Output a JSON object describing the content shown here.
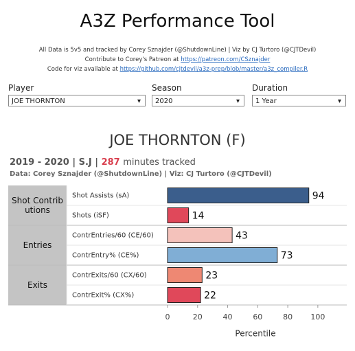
{
  "header": {
    "title": "A3Z Performance Tool",
    "credit": "All Data is 5v5 and tracked by Corey Sznajder (@ShutdownLine) | Viz by CJ Turtoro (@CJTDevil)",
    "patreon_text": "Contribute to Corey's Patreon at",
    "patreon_link": "https://patreon.com/CSznajder",
    "code_text": "Code for viz available at",
    "code_link": "https://github.com/cjtdevil/a3z-prep/blob/master/a3z_compiler.R"
  },
  "filters": [
    {
      "label": "Player",
      "value": "JOE THORNTON"
    },
    {
      "label": "Season",
      "value": "2020"
    },
    {
      "label": "Duration",
      "value": "1 Year"
    }
  ],
  "player": {
    "name": "JOE THORNTON (F)",
    "season": "2019 - 2020 |",
    "team": "S.J |",
    "minutes": "287",
    "minutes_label": "minutes tracked",
    "source": "Data: Corey Sznajder (@ShutdownLine) | Viz: CJ Turtoro (@CJTDevil)"
  },
  "chart_data": {
    "type": "bar",
    "orientation": "horizontal",
    "groups": [
      {
        "name": "Shot Contributions",
        "categories": [
          "Shot Assists (sA)",
          "Shots (iSF)"
        ],
        "values": [
          94,
          14
        ],
        "colors": [
          "#3b5e8c",
          "#e0485a"
        ]
      },
      {
        "name": "Entries",
        "categories": [
          "ContrEntries/60 (CE/60)",
          "ContrEntry% (CE%)"
        ],
        "values": [
          43,
          73
        ],
        "colors": [
          "#f4c2bb",
          "#80aed5"
        ]
      },
      {
        "name": "Exits",
        "categories": [
          "ContrExits/60 (CX/60)",
          "ContrExit% (CX%)"
        ],
        "values": [
          23,
          22
        ],
        "colors": [
          "#ee8873",
          "#e0485a"
        ]
      }
    ],
    "xlim": [
      0,
      106
    ],
    "xticks": [
      0,
      20,
      40,
      60,
      80,
      100
    ],
    "xlabel": "Percentile"
  }
}
